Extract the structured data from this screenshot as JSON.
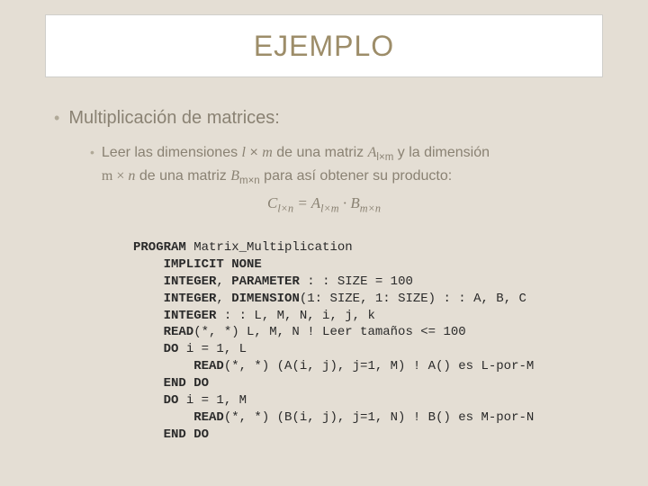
{
  "colors": {
    "slide_bg": "#e4ded4",
    "title_box_bg": "#ffffff",
    "title_box_border": "#d0cfcb",
    "title_text": "#9d8d69",
    "body_text": "#8a8273",
    "bullet_dot": "#b0a998",
    "code_text": "#2a2a2a"
  },
  "title": "EJEMPLO",
  "bullets": {
    "main": "Multiplicación de matrices:",
    "sub_part1": "Leer las dimensiones ",
    "sub_dim1_a": "l",
    "sub_dim1_b": "m",
    "sub_part2": " de una matriz ",
    "sub_matA": "A",
    "sub_matA_idx": "l×m",
    "sub_part3": " y la dimensión",
    "sub_dim2_a": "m",
    "sub_dim2_b": "n",
    "sub_part4": " de una matriz ",
    "sub_matB": "B",
    "sub_matB_idx": "m×n",
    "sub_part5": " para así obtener su producto:"
  },
  "equation": {
    "C": "C",
    "C_idx": "l×n",
    "eq": " = ",
    "A": "A",
    "A_idx": "l×m",
    "dot": " · ",
    "B": "B",
    "B_idx": "m×n"
  },
  "code": {
    "l1a": "PROGRAM",
    "l1b": " Matrix_Multiplication",
    "l2a": "    IMPLICIT NONE",
    "l3a": "    INTEGER",
    "l3b": ", ",
    "l3c": "PARAMETER",
    "l3d": " : : SIZE = 100",
    "l4a": "    INTEGER",
    "l4b": ", ",
    "l4c": "DIMENSION",
    "l4d": "(1: SIZE, 1: SIZE) : : A, B, C",
    "l5a": "    INTEGER",
    "l5b": " : : L, M, N, i, j, k",
    "l6a": "    READ",
    "l6b": "(*, *) L, M, N ! Leer tamaños <= 100",
    "l7a": "    DO",
    "l7b": " i = 1, L",
    "l8a": "        READ",
    "l8b": "(*, *) (A(i, j), j=1, M) ! A() es L-por-M",
    "l9a": "    END DO",
    "l10a": "    DO",
    "l10b": " i = 1, M",
    "l11a": "        READ",
    "l11b": "(*, *) (B(i, j), j=1, N) ! B() es M-por-N",
    "l12a": "    END DO"
  }
}
